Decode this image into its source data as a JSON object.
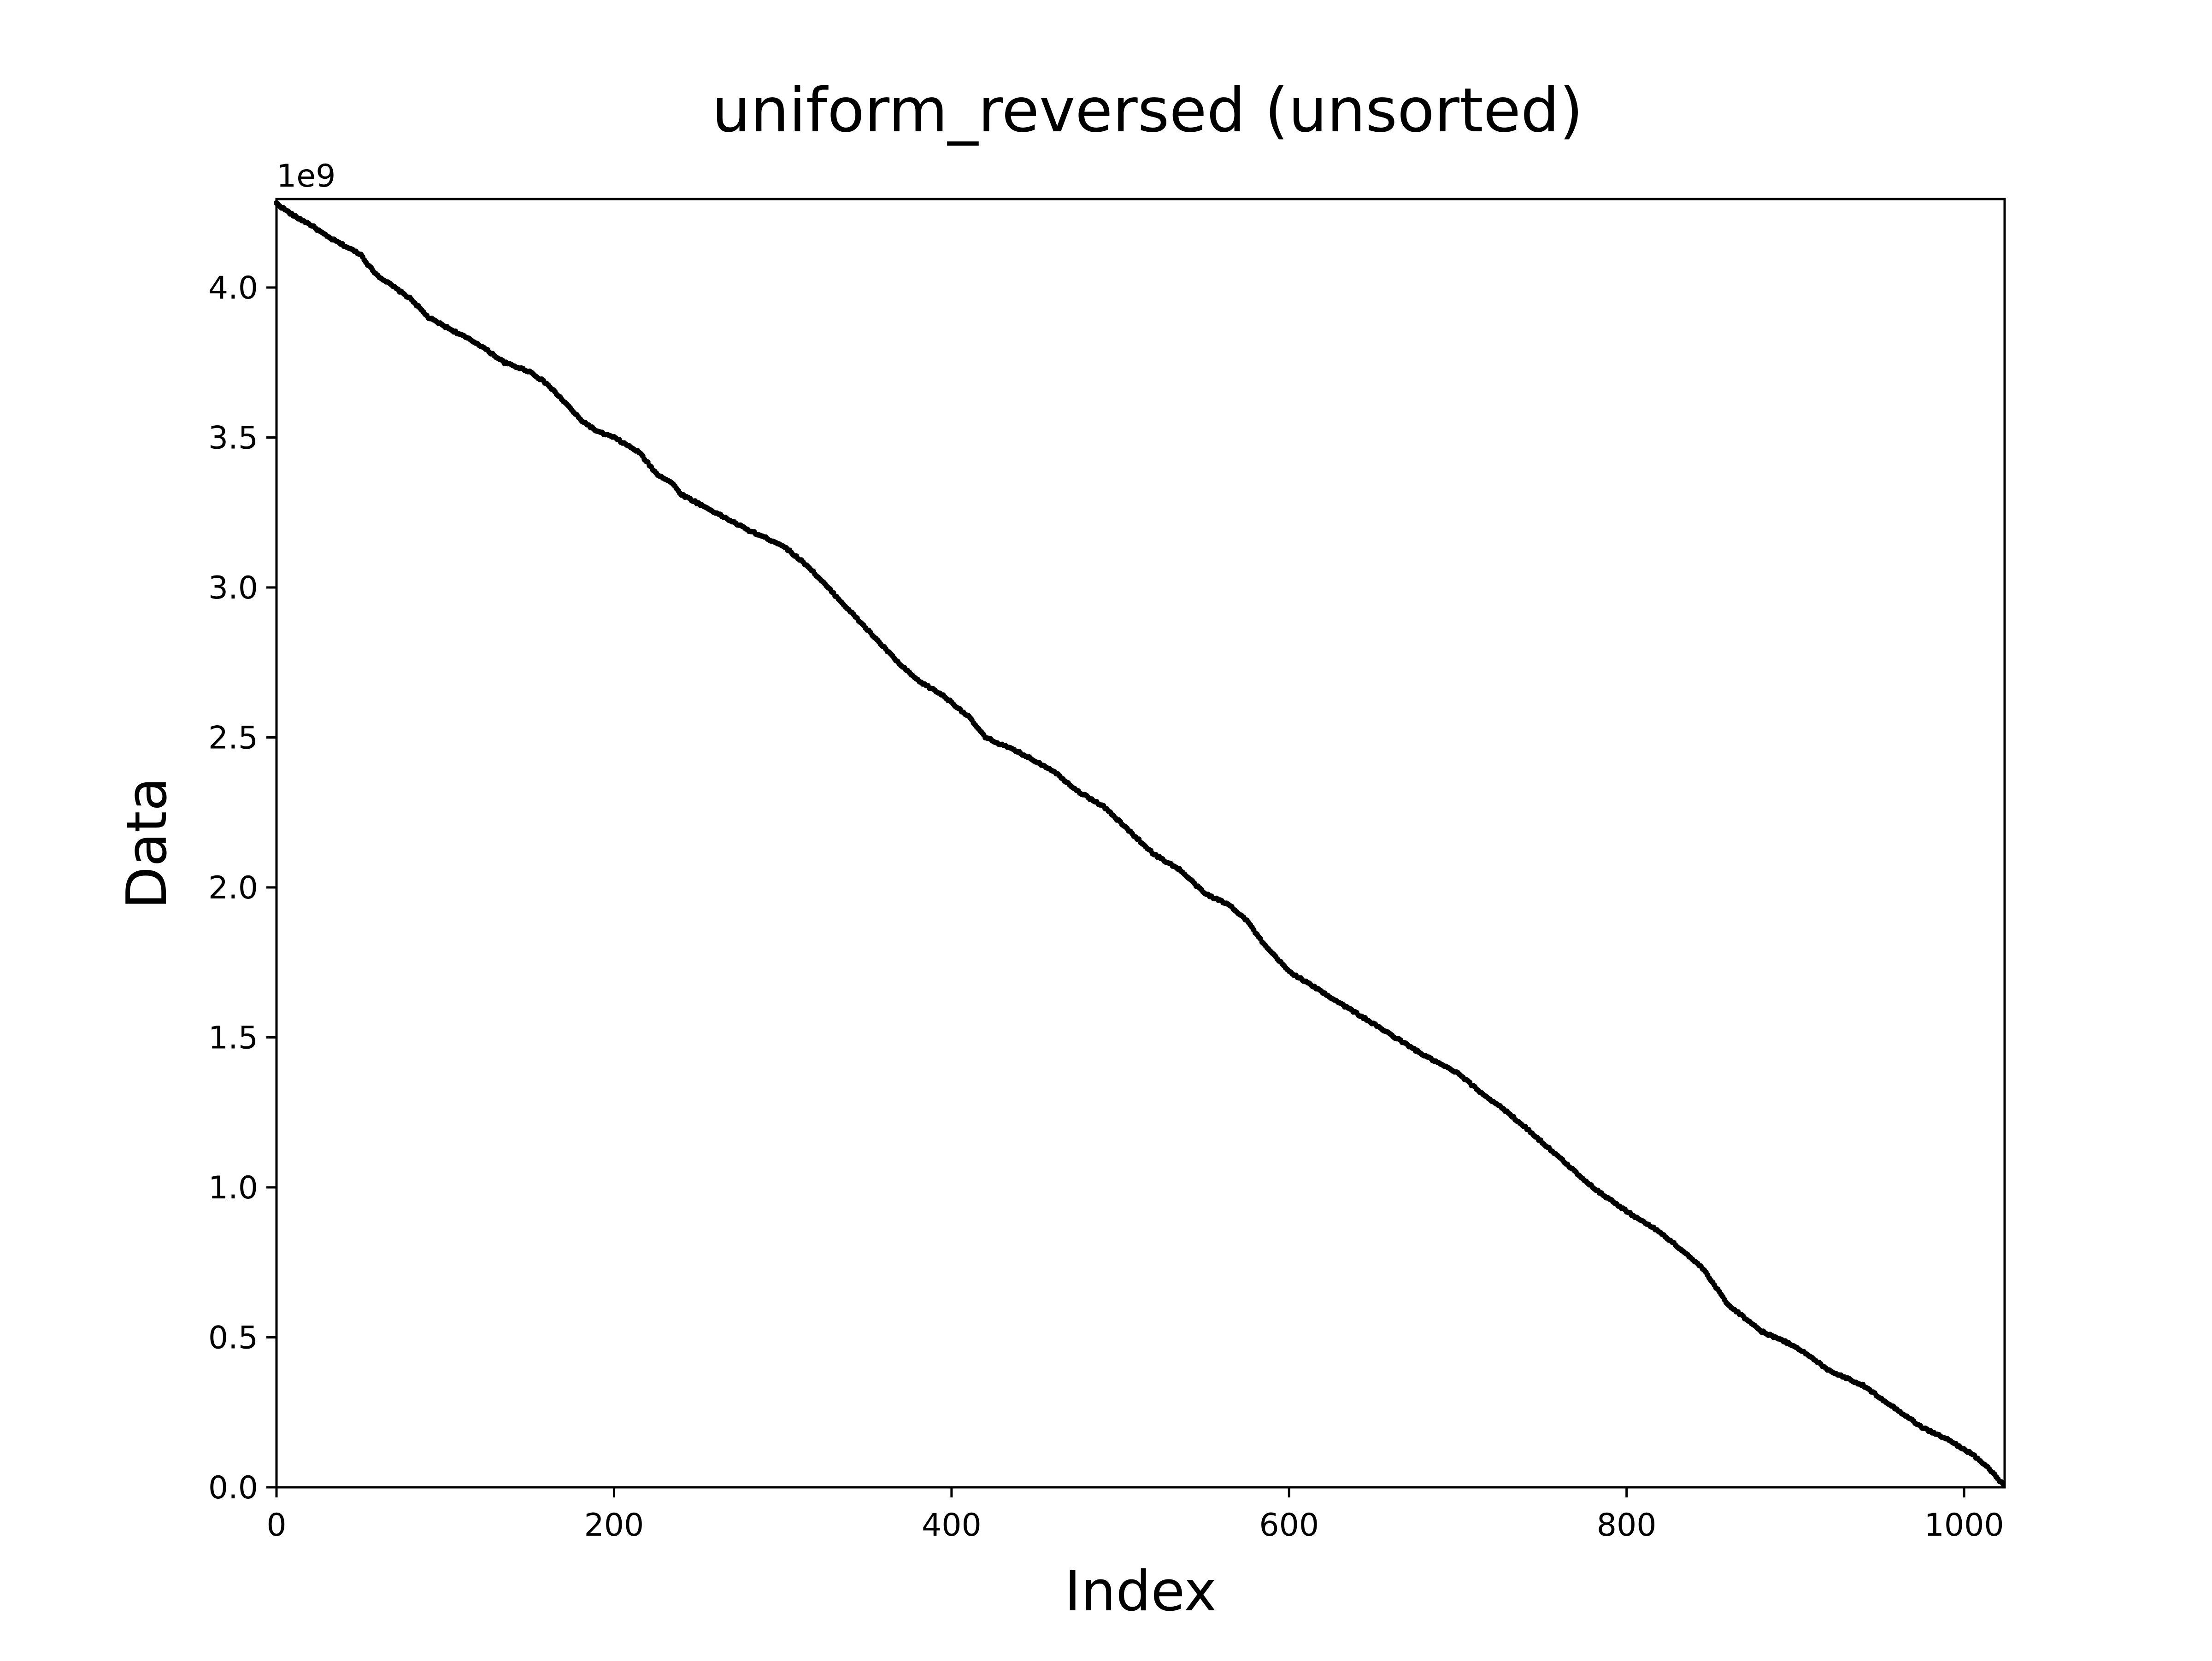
{
  "chart_data": {
    "type": "scatter",
    "title": "uniform_reversed (unsorted)",
    "xlabel": "Index",
    "ylabel": "Data",
    "y_offset_label": "1e9",
    "xlim": [
      0,
      1024
    ],
    "ylim": [
      0,
      4.294967296
    ],
    "xticks": [
      0,
      200,
      400,
      600,
      800,
      1000
    ],
    "xtick_labels": [
      "0",
      "200",
      "400",
      "600",
      "800",
      "1000"
    ],
    "yticks": [
      0.0,
      0.5,
      1.0,
      1.5,
      2.0,
      2.5,
      3.0,
      3.5,
      4.0
    ],
    "ytick_labels": [
      "0.0",
      "0.5",
      "1.0",
      "1.5",
      "2.0",
      "2.5",
      "3.0",
      "3.5",
      "4.0"
    ],
    "grid": false,
    "legend": "none",
    "marker_color": "#000000",
    "n_points": 1024,
    "series": [
      {
        "anchor_x": [
          0,
          10,
          20,
          30,
          40,
          50,
          55,
          60,
          70,
          80,
          90,
          100,
          120,
          135,
          150,
          160,
          172,
          180,
          190,
          200,
          215,
          225,
          234,
          240,
          250,
          260,
          280,
          300,
          315,
          330,
          345,
          360,
          370,
          380,
          395,
          410,
          420,
          440,
          460,
          475,
          490,
          505,
          520,
          535,
          550,
          565,
          575,
          585,
          600,
          620,
          640,
          660,
          680,
          700,
          715,
          725,
          740,
          760,
          780,
          800,
          820,
          835,
          845,
          860,
          880,
          900,
          920,
          940,
          960,
          975,
          990,
          1005,
          1015,
          1023
        ],
        "anchor_y": [
          4.28,
          4.24,
          4.21,
          4.17,
          4.14,
          4.11,
          4.07,
          4.04,
          4.0,
          3.96,
          3.9,
          3.87,
          3.81,
          3.75,
          3.72,
          3.68,
          3.61,
          3.56,
          3.52,
          3.5,
          3.45,
          3.38,
          3.35,
          3.31,
          3.28,
          3.25,
          3.19,
          3.14,
          3.07,
          2.98,
          2.89,
          2.8,
          2.74,
          2.69,
          2.64,
          2.57,
          2.5,
          2.45,
          2.39,
          2.32,
          2.27,
          2.19,
          2.11,
          2.06,
          1.98,
          1.94,
          1.89,
          1.81,
          1.72,
          1.65,
          1.58,
          1.51,
          1.44,
          1.38,
          1.31,
          1.27,
          1.2,
          1.1,
          1.0,
          0.92,
          0.85,
          0.78,
          0.73,
          0.61,
          0.52,
          0.47,
          0.39,
          0.34,
          0.26,
          0.2,
          0.16,
          0.11,
          0.06,
          0.01
        ]
      }
    ]
  }
}
